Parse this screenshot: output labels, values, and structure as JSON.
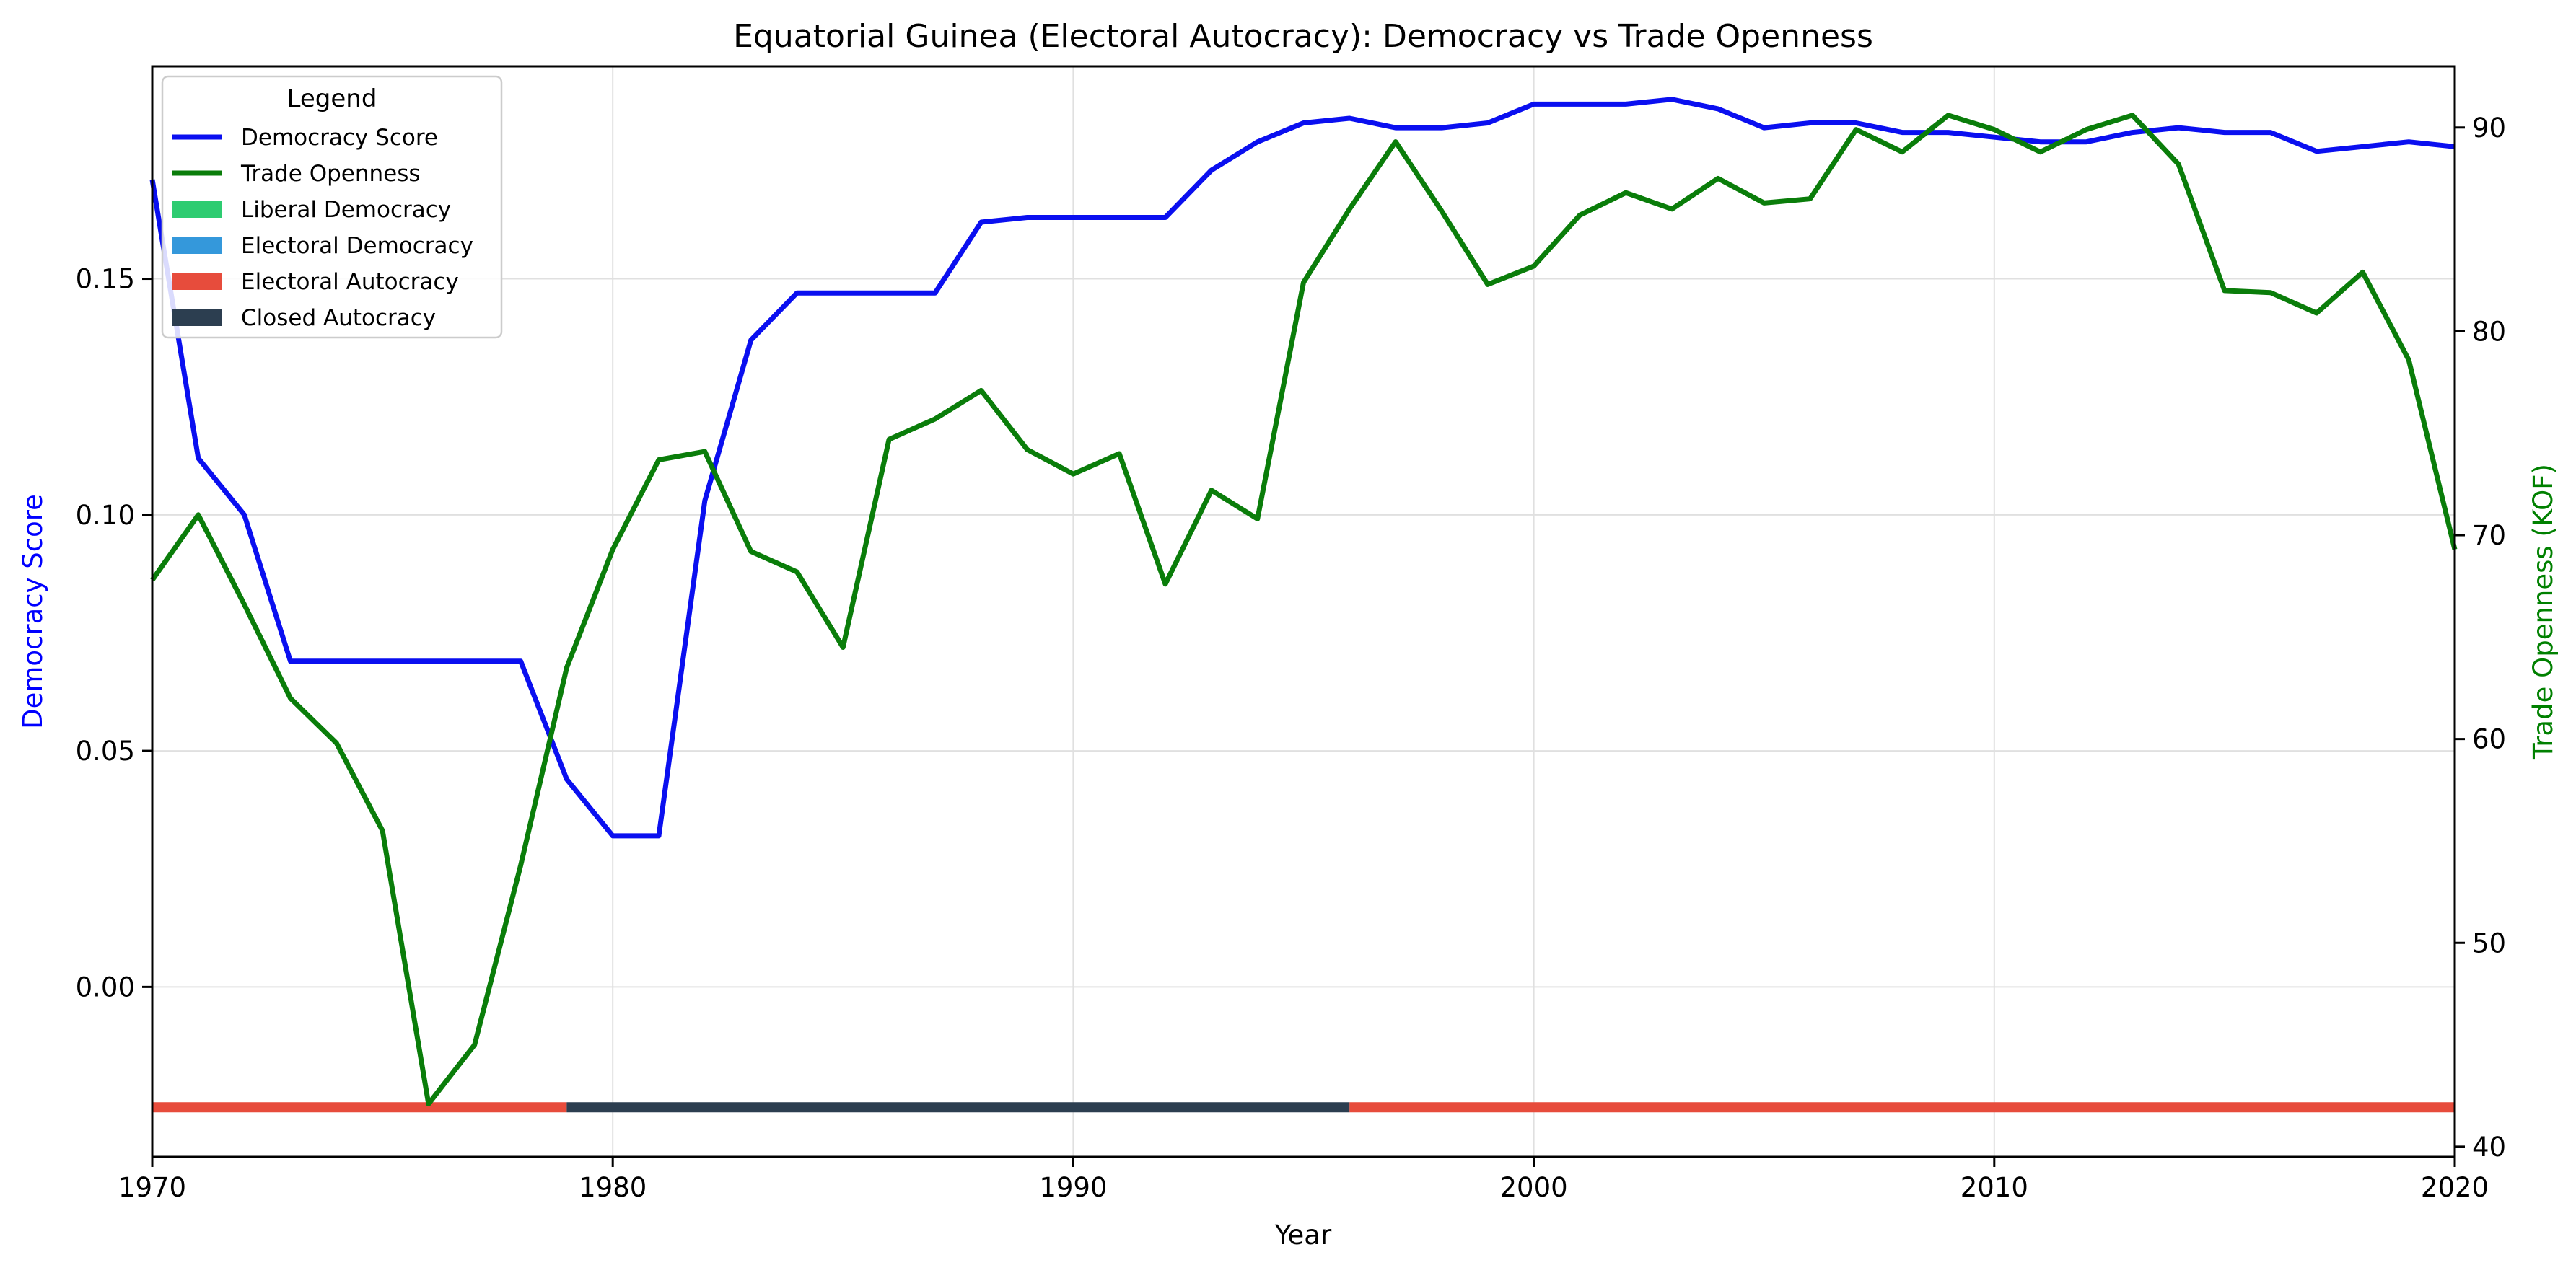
{
  "chart_data": {
    "type": "line",
    "title": "Equatorial Guinea (Electoral Autocracy): Democracy vs Trade Openness",
    "xlabel": "Year",
    "ylabel_left": "Democracy Score",
    "ylabel_right": "Trade Openness (KOF)",
    "xlim": [
      1970,
      2020
    ],
    "ylim_left": [
      -0.036,
      0.195
    ],
    "ylim_right": [
      39.5,
      93
    ],
    "x_ticks": [
      1970,
      1980,
      1990,
      2000,
      2010,
      2020
    ],
    "y_left_ticks": [
      0.0,
      0.05,
      0.1,
      0.15
    ],
    "y_left_tick_labels": [
      "0.00",
      "0.05",
      "0.10",
      "0.15"
    ],
    "y_right_ticks": [
      40,
      50,
      60,
      70,
      80,
      90
    ],
    "y_right_tick_labels": [
      "40",
      "50",
      "60",
      "70",
      "80",
      "90"
    ],
    "grid": true,
    "legend": {
      "title": "Legend",
      "placement": "upper-left",
      "entries": [
        {
          "label": "Democracy Score",
          "kind": "line",
          "color": "#0a0ff0"
        },
        {
          "label": "Trade Openness",
          "kind": "line",
          "color": "#0a7d0a"
        },
        {
          "label": "Liberal Democracy",
          "kind": "patch",
          "color": "#2ecc71"
        },
        {
          "label": "Electoral Democracy",
          "kind": "patch",
          "color": "#3498db"
        },
        {
          "label": "Electoral Autocracy",
          "kind": "patch",
          "color": "#e74c3c"
        },
        {
          "label": "Closed Autocracy",
          "kind": "patch",
          "color": "#2c3e50"
        }
      ]
    },
    "series": [
      {
        "name": "Democracy Score",
        "axis": "left",
        "color": "#0a0ff0",
        "x": [
          1970,
          1971,
          1972,
          1973,
          1974,
          1975,
          1976,
          1977,
          1978,
          1979,
          1980,
          1981,
          1982,
          1983,
          1984,
          1985,
          1986,
          1987,
          1988,
          1989,
          1990,
          1991,
          1992,
          1993,
          1994,
          1995,
          1996,
          1997,
          1998,
          1999,
          2000,
          2001,
          2002,
          2003,
          2004,
          2005,
          2006,
          2007,
          2008,
          2009,
          2010,
          2011,
          2012,
          2013,
          2014,
          2015,
          2016,
          2017,
          2018,
          2019,
          2020
        ],
        "values": [
          0.171,
          0.112,
          0.1,
          0.069,
          0.069,
          0.069,
          0.069,
          0.069,
          0.069,
          0.044,
          0.032,
          0.032,
          0.103,
          0.137,
          0.147,
          0.147,
          0.147,
          0.147,
          0.162,
          0.163,
          0.163,
          0.163,
          0.163,
          0.173,
          0.179,
          0.183,
          0.184,
          0.182,
          0.182,
          0.183,
          0.187,
          0.187,
          0.187,
          0.188,
          0.186,
          0.182,
          0.183,
          0.183,
          0.181,
          0.181,
          0.18,
          0.179,
          0.179,
          0.181,
          0.182,
          0.181,
          0.181,
          0.177,
          0.178,
          0.179,
          0.178
        ]
      },
      {
        "name": "Trade Openness",
        "axis": "right",
        "color": "#0a7d0a",
        "x": [
          1970,
          1971,
          1972,
          1973,
          1974,
          1975,
          1976,
          1977,
          1978,
          1979,
          1980,
          1981,
          1982,
          1983,
          1984,
          1985,
          1986,
          1987,
          1988,
          1989,
          1990,
          1991,
          1992,
          1993,
          1994,
          1995,
          1996,
          1997,
          1998,
          1999,
          2000,
          2001,
          2002,
          2003,
          2004,
          2005,
          2006,
          2007,
          2008,
          2009,
          2010,
          2011,
          2012,
          2013,
          2014,
          2015,
          2016,
          2017,
          2018,
          2019,
          2020
        ],
        "values": [
          67.8,
          71.0,
          66.6,
          62.0,
          59.8,
          55.5,
          42.1,
          45.0,
          53.8,
          63.5,
          69.3,
          73.7,
          74.1,
          69.2,
          68.2,
          64.5,
          74.7,
          75.7,
          77.1,
          74.2,
          73.0,
          74.0,
          67.6,
          72.2,
          70.8,
          82.4,
          86.0,
          89.3,
          85.9,
          82.3,
          83.2,
          85.7,
          86.8,
          86.0,
          87.5,
          86.3,
          86.5,
          89.9,
          88.8,
          90.6,
          89.9,
          88.8,
          89.9,
          90.6,
          88.2,
          82.0,
          81.9,
          80.9,
          82.9,
          78.6,
          69.3
        ]
      }
    ],
    "regime_bar": {
      "y_value_left": -0.0255,
      "segments": [
        {
          "start": 1970,
          "end": 1979,
          "regime": "Electoral Autocracy",
          "color": "#e74c3c"
        },
        {
          "start": 1979,
          "end": 1996,
          "regime": "Closed Autocracy",
          "color": "#2c3e50"
        },
        {
          "start": 1996,
          "end": 2020,
          "regime": "Electoral Autocracy",
          "color": "#e74c3c"
        }
      ]
    },
    "colors": {
      "left_axis_label": "#0000ff",
      "right_axis_label": "#008000",
      "grid": "#e0e0e0"
    }
  }
}
